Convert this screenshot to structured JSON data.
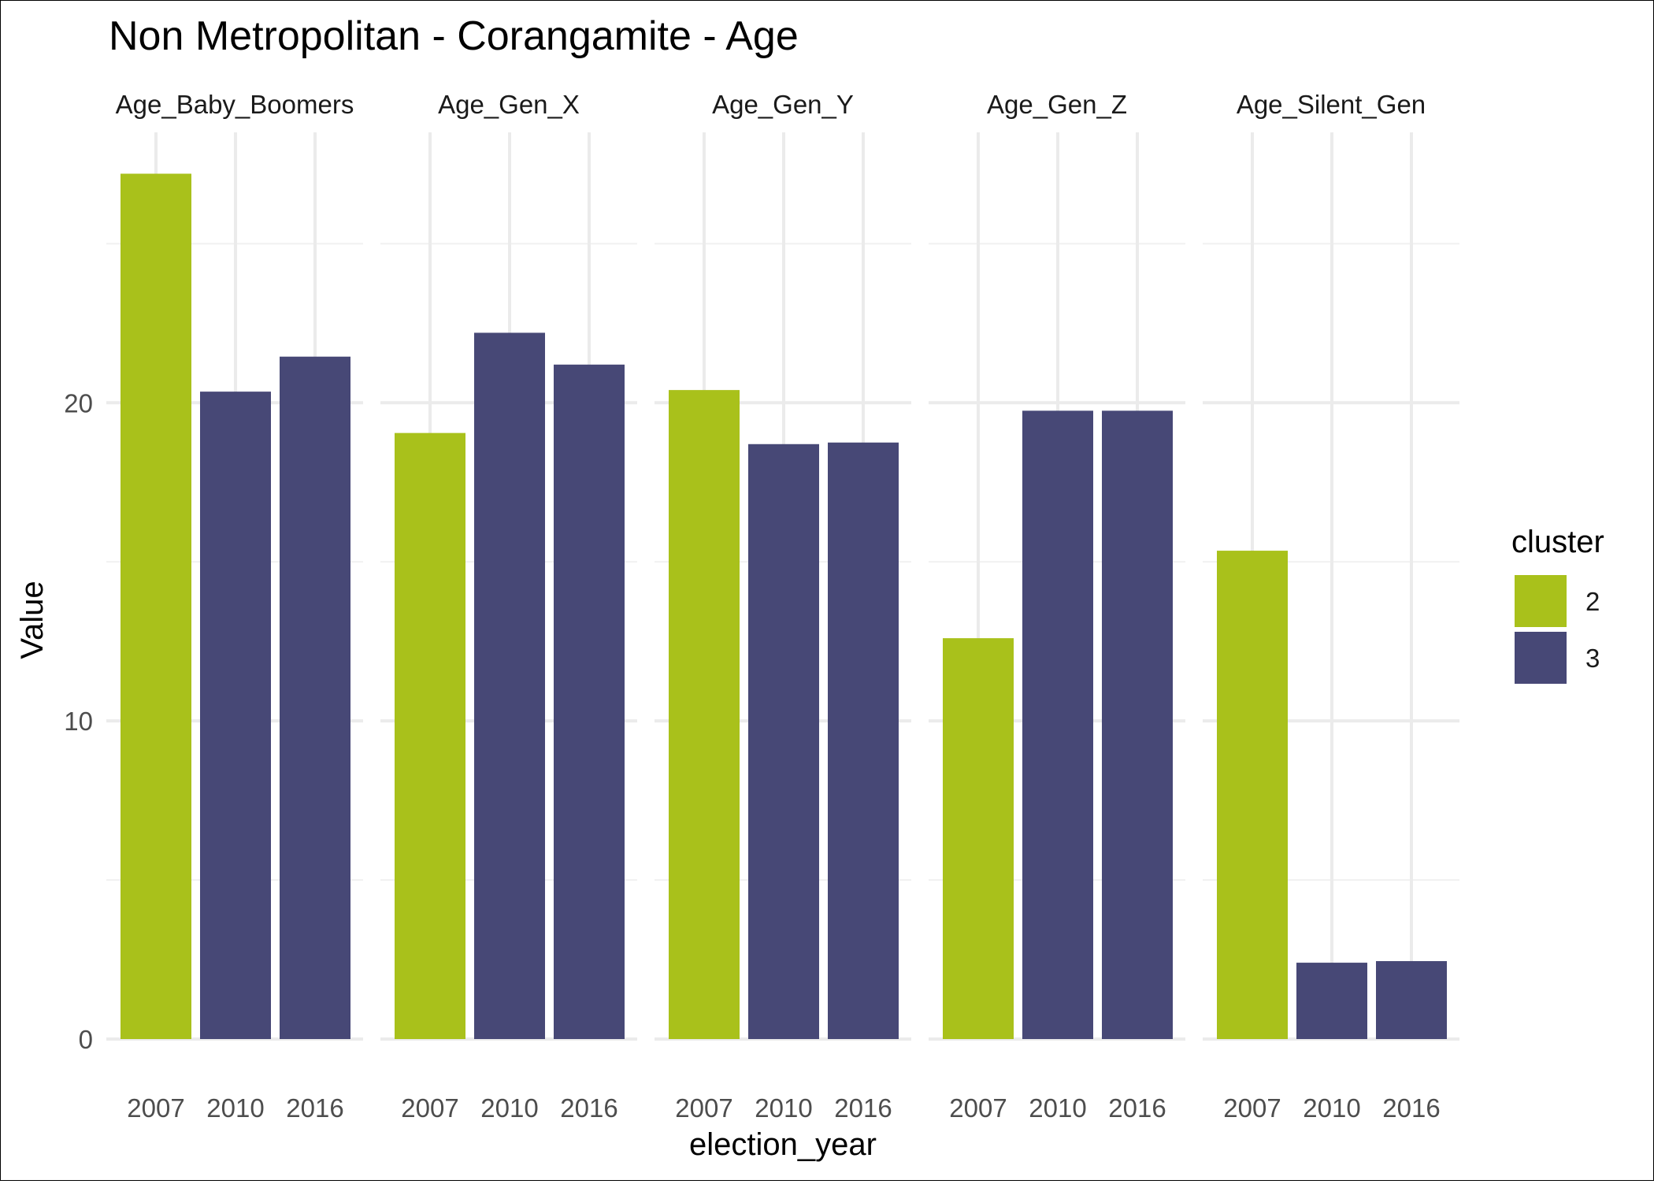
{
  "chart_data": {
    "type": "bar",
    "title": "Non Metropolitan - Corangamite - Age",
    "xlabel": "election_year",
    "ylabel": "Value",
    "ylim": [
      0,
      28.5
    ],
    "y_ticks": [
      0,
      10,
      20
    ],
    "grid": true,
    "categories": [
      "2007",
      "2010",
      "2016"
    ],
    "facets": [
      {
        "label": "Age_Baby_Boomers",
        "bars": [
          {
            "x": "2007",
            "value": 27.2,
            "cluster": "2"
          },
          {
            "x": "2010",
            "value": 20.35,
            "cluster": "3"
          },
          {
            "x": "2016",
            "value": 21.45,
            "cluster": "3"
          }
        ]
      },
      {
        "label": "Age_Gen_X",
        "bars": [
          {
            "x": "2007",
            "value": 19.05,
            "cluster": "2"
          },
          {
            "x": "2010",
            "value": 22.2,
            "cluster": "3"
          },
          {
            "x": "2016",
            "value": 21.2,
            "cluster": "3"
          }
        ]
      },
      {
        "label": "Age_Gen_Y",
        "bars": [
          {
            "x": "2007",
            "value": 20.4,
            "cluster": "2"
          },
          {
            "x": "2010",
            "value": 18.7,
            "cluster": "3"
          },
          {
            "x": "2016",
            "value": 18.75,
            "cluster": "3"
          }
        ]
      },
      {
        "label": "Age_Gen_Z",
        "bars": [
          {
            "x": "2007",
            "value": 12.6,
            "cluster": "2"
          },
          {
            "x": "2010",
            "value": 19.75,
            "cluster": "3"
          },
          {
            "x": "2016",
            "value": 19.75,
            "cluster": "3"
          }
        ]
      },
      {
        "label": "Age_Silent_Gen",
        "bars": [
          {
            "x": "2007",
            "value": 15.35,
            "cluster": "2"
          },
          {
            "x": "2010",
            "value": 2.4,
            "cluster": "3"
          },
          {
            "x": "2016",
            "value": 2.45,
            "cluster": "3"
          }
        ]
      }
    ],
    "legend": {
      "title": "cluster",
      "position": "right",
      "items": [
        {
          "label": "2",
          "color": "#a9c11b"
        },
        {
          "label": "3",
          "color": "#474876"
        }
      ]
    }
  }
}
